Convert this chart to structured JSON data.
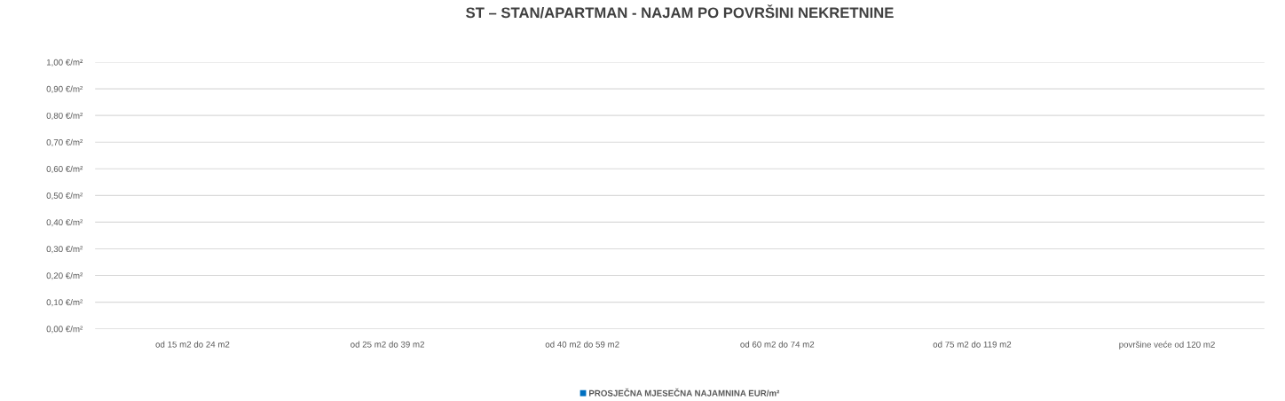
{
  "chart_data": {
    "type": "bar",
    "title": "ST – STAN/APARTMAN - NAJAM PO POVRŠINI NEKRETNINE",
    "categories": [
      "od 15 m2 do 24 m2",
      "od 25 m2 do 39 m2",
      "od 40 m2 do 59 m2",
      "od 60 m2 do 74 m2",
      "od 75 m2 do 119 m2",
      "površine veće od 120 m2"
    ],
    "series": [
      {
        "name": "PROSJEČNA MJESEČNA NAJAMNINA EUR/m²",
        "color": "#0070c0",
        "values": [
          null,
          null,
          null,
          null,
          null,
          null
        ]
      }
    ],
    "ylim": [
      0,
      1
    ],
    "yticks": [
      {
        "value": 0,
        "label": "0,00 €/m²"
      },
      {
        "value": 0.1,
        "label": "0,10 €/m²"
      },
      {
        "value": 0.2,
        "label": "0,20 €/m²"
      },
      {
        "value": 0.3,
        "label": "0,30 €/m²"
      },
      {
        "value": 0.4,
        "label": "0,40 €/m²"
      },
      {
        "value": 0.5,
        "label": "0,50 €/m²"
      },
      {
        "value": 0.6,
        "label": "0,60 €/m²"
      },
      {
        "value": 0.7,
        "label": "0,70 €/m²"
      },
      {
        "value": 0.8,
        "label": "0,80 €/m²"
      },
      {
        "value": 0.9,
        "label": "0,90 €/m²"
      },
      {
        "value": 1,
        "label": "1,00 €/m²"
      }
    ],
    "grid": "y",
    "legend": "bottom"
  }
}
